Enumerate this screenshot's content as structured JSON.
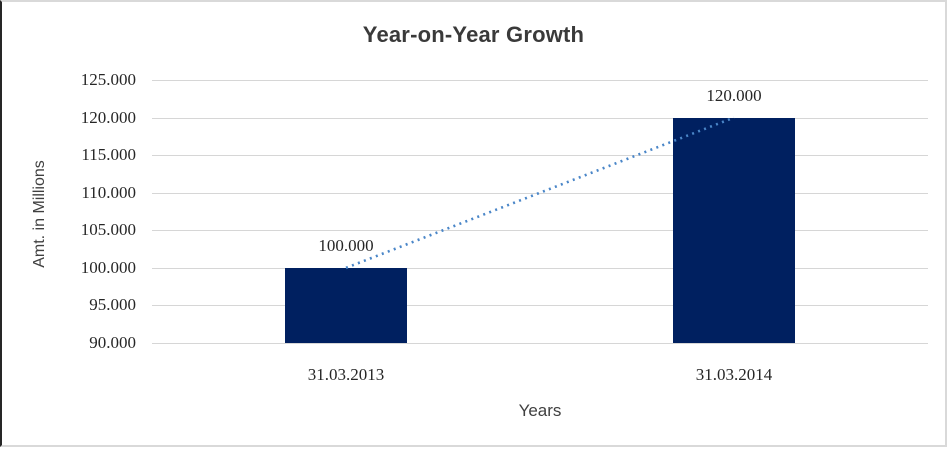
{
  "chart_data": {
    "type": "bar",
    "title": "Year-on-Year Growth",
    "xlabel": "Years",
    "ylabel": "Amt. in Millions",
    "categories": [
      "31.03.2013",
      "31.03.2014"
    ],
    "values": [
      100,
      120
    ],
    "data_labels": [
      "100.000",
      "120.000"
    ],
    "ytick_labels": [
      "90.000",
      "95.000",
      "100.000",
      "105.000",
      "110.000",
      "115.000",
      "120.000",
      "125.000"
    ],
    "ylim": [
      90,
      125
    ],
    "ytick_step": 5,
    "grid": true,
    "legend": "none",
    "trendline": {
      "style": "dotted",
      "from_category_index": 0,
      "to_category_index": 1
    },
    "colors": {
      "bar": "#002060",
      "trendline": "#4a86c8",
      "gridline": "#d6d6d6",
      "title_text": "#3a3a3a",
      "tick_text": "#262626",
      "axis_title_text": "#404040"
    }
  }
}
